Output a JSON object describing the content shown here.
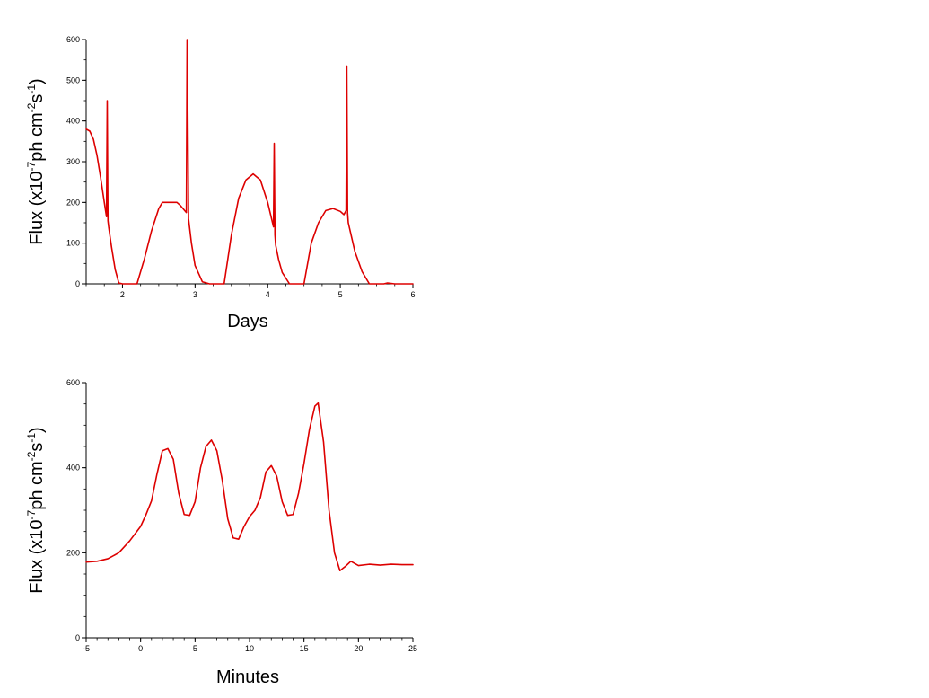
{
  "chart_data": [
    {
      "type": "line",
      "title": "",
      "xlabel": "Days",
      "ylabel": {
        "base": "Flux (x10",
        "sup1": "-7",
        "mid": "ph cm",
        "sup2": "-2",
        "sp": "s",
        "sup3": "-1",
        "end": ")"
      },
      "xlim": [
        1.5,
        6
      ],
      "ylim": [
        0,
        600
      ],
      "xticks": [
        2,
        3,
        4,
        5,
        6
      ],
      "yticks": [
        0,
        100,
        200,
        300,
        400,
        500,
        600
      ],
      "color": "#dd0000",
      "series": [
        {
          "x": [
            1.5,
            1.55,
            1.6,
            1.65,
            1.7,
            1.75,
            1.78,
            1.79,
            1.8,
            1.81,
            1.85,
            1.9,
            1.95,
            2.0,
            2.2,
            2.3,
            2.4,
            2.5,
            2.55,
            2.65,
            2.75,
            2.8,
            2.88,
            2.89,
            2.9,
            2.91,
            2.95,
            3.0,
            3.1,
            3.2,
            3.4,
            3.5,
            3.6,
            3.7,
            3.8,
            3.9,
            4.0,
            4.08,
            4.09,
            4.1,
            4.11,
            4.15,
            4.2,
            4.3,
            4.5,
            4.6,
            4.7,
            4.8,
            4.9,
            5.0,
            5.05,
            5.08,
            5.09,
            5.1,
            5.11,
            5.2,
            5.3,
            5.4,
            5.6,
            5.65,
            5.75,
            5.8,
            6.0
          ],
          "y": [
            380,
            375,
            355,
            315,
            260,
            200,
            165,
            450,
            155,
            140,
            90,
            35,
            2,
            0,
            0,
            60,
            130,
            185,
            200,
            200,
            200,
            192,
            175,
            600,
            420,
            160,
            100,
            45,
            5,
            0,
            0,
            120,
            210,
            255,
            270,
            255,
            200,
            140,
            345,
            120,
            95,
            60,
            28,
            0,
            0,
            100,
            150,
            180,
            185,
            178,
            170,
            180,
            535,
            175,
            150,
            80,
            30,
            0,
            0,
            2,
            0,
            0,
            0
          ]
        }
      ]
    },
    {
      "type": "line",
      "title": "",
      "xlabel": "Minutes",
      "ylabel": {
        "base": "Flux (x10",
        "sup1": "-7",
        "mid": "ph cm",
        "sup2": "-2",
        "sp": "s",
        "sup3": "-1",
        "end": ")"
      },
      "xlim": [
        -5,
        25
      ],
      "ylim": [
        0,
        600
      ],
      "xticks": [
        -5,
        0,
        5,
        10,
        15,
        20,
        25
      ],
      "yticks": [
        0,
        200,
        400,
        600
      ],
      "color": "#dd0000",
      "series": [
        {
          "x": [
            -5,
            -4,
            -3,
            -2,
            -1,
            0,
            0.5,
            1,
            1.5,
            2,
            2.5,
            3,
            3.5,
            4,
            4.5,
            5,
            5.5,
            6,
            6.5,
            7,
            7.5,
            8,
            8.5,
            9,
            9.5,
            10,
            10.5,
            11,
            11.5,
            12,
            12.5,
            13,
            13.5,
            14,
            14.5,
            15,
            15.5,
            16,
            16.3,
            16.8,
            17.3,
            17.8,
            18.3,
            18.8,
            19.3,
            20,
            21,
            22,
            23,
            24,
            25
          ],
          "y": [
            178,
            180,
            186,
            200,
            228,
            262,
            290,
            322,
            385,
            440,
            445,
            420,
            340,
            290,
            288,
            320,
            400,
            450,
            465,
            440,
            370,
            280,
            235,
            232,
            262,
            285,
            300,
            330,
            390,
            405,
            380,
            320,
            288,
            290,
            340,
            410,
            490,
            545,
            552,
            460,
            300,
            200,
            158,
            168,
            180,
            170,
            173,
            171,
            173,
            172,
            172
          ]
        }
      ]
    }
  ]
}
